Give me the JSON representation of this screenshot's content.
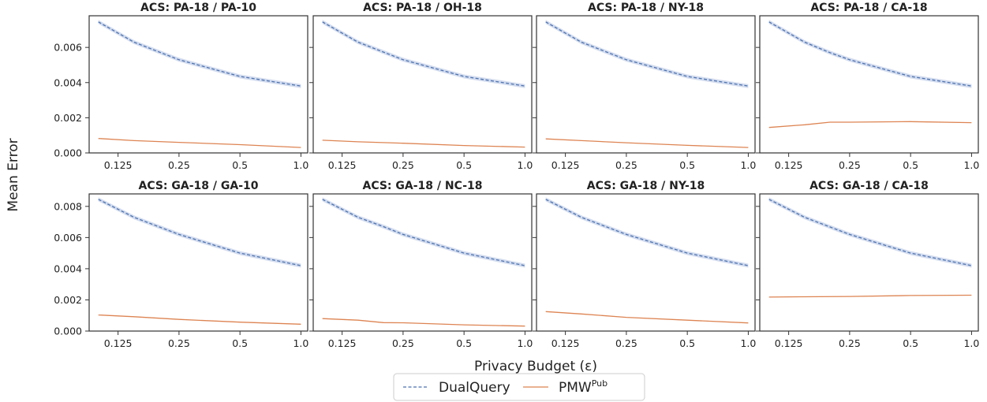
{
  "figure": {
    "xlabel": "Privacy Budget (ε)",
    "ylabel": "Mean Error",
    "legend": {
      "placement": "bottom-center",
      "items": [
        {
          "label": "DualQuery",
          "label_sup": "",
          "color": "#4c72b0",
          "style": "dashed"
        },
        {
          "label": "PMW",
          "label_sup": "Pub",
          "color": "#dd8452",
          "style": "solid"
        }
      ]
    },
    "colors": {
      "dualquery": "#4c72b0",
      "pmw": "#dd8452",
      "band": "#aebfe0"
    }
  },
  "chart_data": [
    {
      "type": "line",
      "title": "ACS: PA-18 / PA-10",
      "row": 0,
      "x": [
        0.1,
        0.15,
        0.25,
        0.5,
        1.0
      ],
      "xscale": "log",
      "xticks": [
        "0.125",
        "0.25",
        "0.5",
        "1.0"
      ],
      "ylim": [
        0,
        0.0078
      ],
      "yticks": [
        "0.000",
        "0.002",
        "0.004",
        "0.006"
      ],
      "series": [
        {
          "name": "DualQuery",
          "values": [
            0.00745,
            0.0063,
            0.0053,
            0.00435,
            0.0038
          ]
        },
        {
          "name": "PMW",
          "values": [
            0.00082,
            0.0007,
            0.0006,
            0.00047,
            0.00031
          ]
        }
      ]
    },
    {
      "type": "line",
      "title": "ACS: PA-18 / OH-18",
      "row": 0,
      "x": [
        0.1,
        0.15,
        0.25,
        0.5,
        1.0
      ],
      "xscale": "log",
      "xticks": [
        "0.125",
        "0.25",
        "0.5",
        "1.0"
      ],
      "ylim": [
        0,
        0.0078
      ],
      "yticks": [],
      "series": [
        {
          "name": "DualQuery",
          "values": [
            0.00745,
            0.0063,
            0.0053,
            0.00435,
            0.0038
          ]
        },
        {
          "name": "PMW",
          "values": [
            0.00072,
            0.00063,
            0.00055,
            0.00042,
            0.00033
          ]
        }
      ]
    },
    {
      "type": "line",
      "title": "ACS: PA-18 / NY-18",
      "row": 0,
      "x": [
        0.1,
        0.15,
        0.25,
        0.5,
        1.0
      ],
      "xscale": "log",
      "xticks": [
        "0.125",
        "0.25",
        "0.5",
        "1.0"
      ],
      "ylim": [
        0,
        0.0078
      ],
      "yticks": [],
      "series": [
        {
          "name": "DualQuery",
          "values": [
            0.00745,
            0.0063,
            0.0053,
            0.00435,
            0.0038
          ]
        },
        {
          "name": "PMW",
          "values": [
            0.0008,
            0.0007,
            0.00058,
            0.00043,
            0.00031
          ]
        }
      ]
    },
    {
      "type": "line",
      "title": "ACS: PA-18 / CA-18",
      "row": 0,
      "x": [
        0.1,
        0.15,
        0.2,
        0.25,
        0.5,
        1.0
      ],
      "xscale": "log",
      "xticks": [
        "0.125",
        "0.25",
        "0.5",
        "1.0"
      ],
      "ylim": [
        0,
        0.0078
      ],
      "yticks": [],
      "series": [
        {
          "name": "DualQuery",
          "values": [
            0.00745,
            0.0063,
            0.0057,
            0.0053,
            0.00435,
            0.0038
          ]
        },
        {
          "name": "PMW",
          "values": [
            0.00145,
            0.0016,
            0.00175,
            0.00175,
            0.00178,
            0.00172
          ]
        }
      ]
    },
    {
      "type": "line",
      "title": "ACS: GA-18 / GA-10",
      "row": 1,
      "x": [
        0.1,
        0.15,
        0.25,
        0.5,
        1.0
      ],
      "xscale": "log",
      "xticks": [
        "0.125",
        "0.25",
        "0.5",
        "1.0"
      ],
      "ylim": [
        0,
        0.0088
      ],
      "yticks": [
        "0.000",
        "0.002",
        "0.004",
        "0.006",
        "0.008"
      ],
      "series": [
        {
          "name": "DualQuery",
          "values": [
            0.00845,
            0.0073,
            0.0062,
            0.005,
            0.0042
          ]
        },
        {
          "name": "PMW",
          "values": [
            0.00103,
            0.00092,
            0.00075,
            0.00057,
            0.00044
          ]
        }
      ]
    },
    {
      "type": "line",
      "title": "ACS: GA-18 / NC-18",
      "row": 1,
      "x": [
        0.1,
        0.15,
        0.2,
        0.25,
        0.5,
        1.0
      ],
      "xscale": "log",
      "xticks": [
        "0.125",
        "0.25",
        "0.5",
        "1.0"
      ],
      "ylim": [
        0,
        0.0088
      ],
      "yticks": [],
      "series": [
        {
          "name": "DualQuery",
          "values": [
            0.00845,
            0.0073,
            0.0067,
            0.0062,
            0.005,
            0.0042
          ]
        },
        {
          "name": "PMW",
          "values": [
            0.0008,
            0.0007,
            0.00054,
            0.00053,
            0.0004,
            0.00032
          ]
        }
      ]
    },
    {
      "type": "line",
      "title": "ACS: GA-18 / NY-18",
      "row": 1,
      "x": [
        0.1,
        0.15,
        0.25,
        0.5,
        1.0
      ],
      "xscale": "log",
      "xticks": [
        "0.125",
        "0.25",
        "0.5",
        "1.0"
      ],
      "ylim": [
        0,
        0.0088
      ],
      "yticks": [],
      "series": [
        {
          "name": "DualQuery",
          "values": [
            0.00845,
            0.0073,
            0.0062,
            0.005,
            0.0042
          ]
        },
        {
          "name": "PMW",
          "values": [
            0.00125,
            0.0011,
            0.00088,
            0.0007,
            0.00052
          ]
        }
      ]
    },
    {
      "type": "line",
      "title": "ACS: GA-18 / CA-18",
      "row": 1,
      "x": [
        0.1,
        0.15,
        0.25,
        0.5,
        1.0
      ],
      "xscale": "log",
      "xticks": [
        "0.125",
        "0.25",
        "0.5",
        "1.0"
      ],
      "ylim": [
        0,
        0.0088
      ],
      "yticks": [],
      "series": [
        {
          "name": "DualQuery",
          "values": [
            0.00845,
            0.0073,
            0.0062,
            0.005,
            0.0042
          ]
        },
        {
          "name": "PMW",
          "values": [
            0.00218,
            0.0022,
            0.00222,
            0.00228,
            0.0023
          ]
        }
      ]
    }
  ]
}
